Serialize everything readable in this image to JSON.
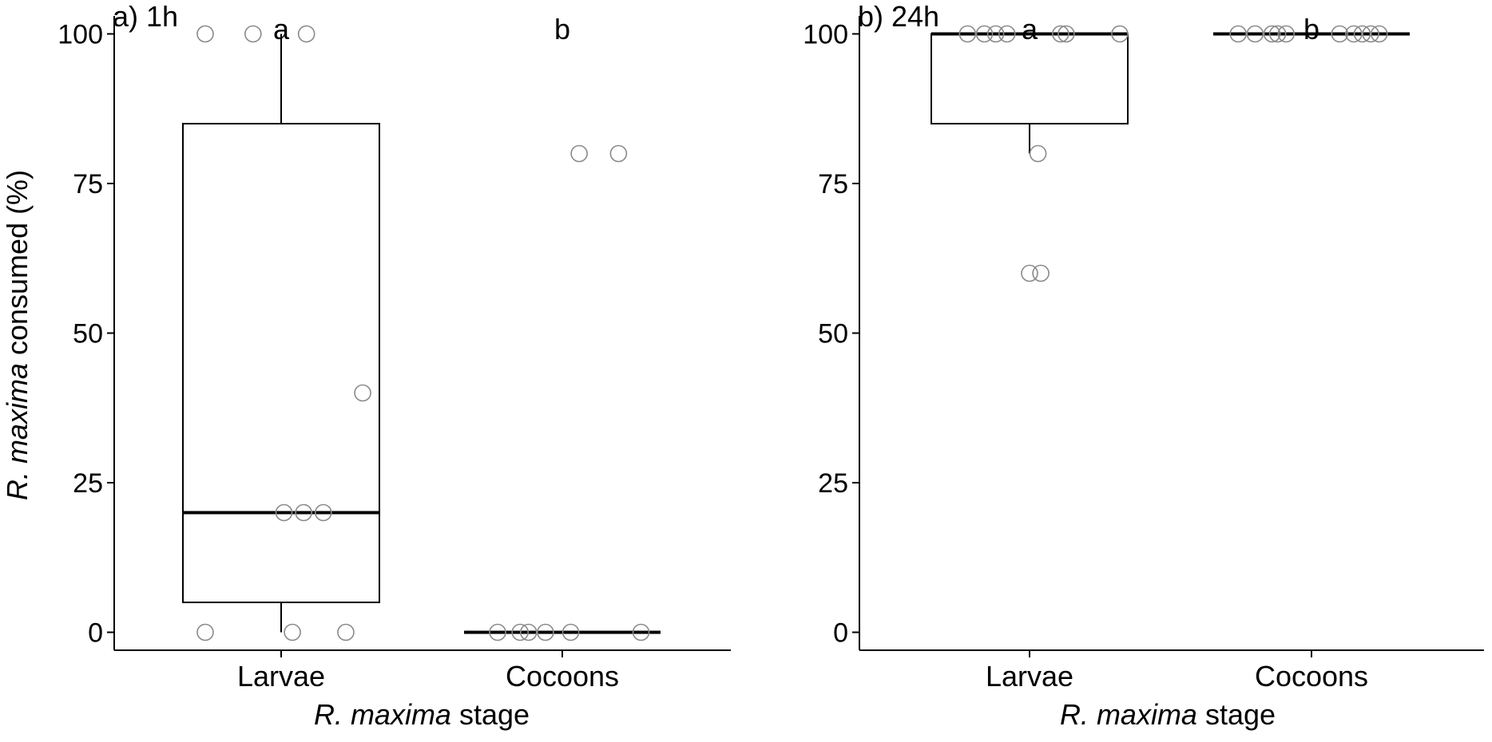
{
  "figure": {
    "ylabel_italic": "R. maxima",
    "ylabel_rest": " consumed (%)",
    "xlabel_italic": "R. maxima",
    "xlabel_rest": " stage"
  },
  "chart_data": [
    {
      "type": "box",
      "panel_label": "a) 1h",
      "categories": [
        "Larvae",
        "Cocoons"
      ],
      "ylim": [
        -3,
        103
      ],
      "yticks": [
        0,
        25,
        50,
        75,
        100
      ],
      "ytick_labels": [
        "0",
        "25",
        "50",
        "75",
        "100"
      ],
      "xlabel": "R. maxima stage",
      "ylabel": "R. maxima consumed (%)",
      "grid": false,
      "significance_letters": [
        "a",
        "b"
      ],
      "boxes": [
        {
          "category": "Larvae",
          "min": 0,
          "q1": 5,
          "median": 20,
          "q3": 85,
          "max": 100
        },
        {
          "category": "Cocoons",
          "min": 0,
          "q1": 0,
          "median": 0,
          "q3": 0,
          "max": 0
        }
      ],
      "points": [
        {
          "category": "Larvae",
          "jitter": -0.27,
          "value": 100
        },
        {
          "category": "Larvae",
          "jitter": -0.1,
          "value": 100
        },
        {
          "category": "Larvae",
          "jitter": 0.09,
          "value": 100
        },
        {
          "category": "Larvae",
          "jitter": 0.29,
          "value": 40
        },
        {
          "category": "Larvae",
          "jitter": 0.01,
          "value": 20
        },
        {
          "category": "Larvae",
          "jitter": 0.08,
          "value": 20
        },
        {
          "category": "Larvae",
          "jitter": 0.15,
          "value": 20
        },
        {
          "category": "Larvae",
          "jitter": -0.27,
          "value": 0
        },
        {
          "category": "Larvae",
          "jitter": 0.04,
          "value": 0
        },
        {
          "category": "Larvae",
          "jitter": 0.23,
          "value": 0
        },
        {
          "category": "Cocoons",
          "jitter": 0.06,
          "value": 80
        },
        {
          "category": "Cocoons",
          "jitter": 0.2,
          "value": 80
        },
        {
          "category": "Cocoons",
          "jitter": -0.23,
          "value": 0
        },
        {
          "category": "Cocoons",
          "jitter": -0.15,
          "value": 0
        },
        {
          "category": "Cocoons",
          "jitter": -0.12,
          "value": 0
        },
        {
          "category": "Cocoons",
          "jitter": -0.06,
          "value": 0
        },
        {
          "category": "Cocoons",
          "jitter": 0.03,
          "value": 0
        },
        {
          "category": "Cocoons",
          "jitter": 0.28,
          "value": 0
        }
      ]
    },
    {
      "type": "box",
      "panel_label": "b) 24h",
      "categories": [
        "Larvae",
        "Cocoons"
      ],
      "ylim": [
        -3,
        103
      ],
      "yticks": [
        0,
        25,
        50,
        75,
        100
      ],
      "ytick_labels": [
        "0",
        "25",
        "50",
        "75",
        "100"
      ],
      "xlabel": "R. maxima stage",
      "ylabel": "",
      "grid": false,
      "significance_letters": [
        "a",
        "b"
      ],
      "boxes": [
        {
          "category": "Larvae",
          "min": 80,
          "q1": 85,
          "median": 100,
          "q3": 100,
          "max": 100
        },
        {
          "category": "Cocoons",
          "min": 100,
          "q1": 100,
          "median": 100,
          "q3": 100,
          "max": 100
        }
      ],
      "points": [
        {
          "category": "Larvae",
          "jitter": -0.22,
          "value": 100
        },
        {
          "category": "Larvae",
          "jitter": -0.16,
          "value": 100
        },
        {
          "category": "Larvae",
          "jitter": -0.12,
          "value": 100
        },
        {
          "category": "Larvae",
          "jitter": -0.08,
          "value": 100
        },
        {
          "category": "Larvae",
          "jitter": 0.11,
          "value": 100
        },
        {
          "category": "Larvae",
          "jitter": 0.13,
          "value": 100
        },
        {
          "category": "Larvae",
          "jitter": 0.32,
          "value": 100
        },
        {
          "category": "Larvae",
          "jitter": 0.03,
          "value": 80
        },
        {
          "category": "Larvae",
          "jitter": 0.0,
          "value": 60
        },
        {
          "category": "Larvae",
          "jitter": 0.04,
          "value": 60
        },
        {
          "category": "Cocoons",
          "jitter": -0.26,
          "value": 100
        },
        {
          "category": "Cocoons",
          "jitter": -0.2,
          "value": 100
        },
        {
          "category": "Cocoons",
          "jitter": -0.14,
          "value": 100
        },
        {
          "category": "Cocoons",
          "jitter": -0.12,
          "value": 100
        },
        {
          "category": "Cocoons",
          "jitter": -0.09,
          "value": 100
        },
        {
          "category": "Cocoons",
          "jitter": 0.1,
          "value": 100
        },
        {
          "category": "Cocoons",
          "jitter": 0.15,
          "value": 100
        },
        {
          "category": "Cocoons",
          "jitter": 0.18,
          "value": 100
        },
        {
          "category": "Cocoons",
          "jitter": 0.21,
          "value": 100
        },
        {
          "category": "Cocoons",
          "jitter": 0.24,
          "value": 100
        }
      ]
    }
  ]
}
